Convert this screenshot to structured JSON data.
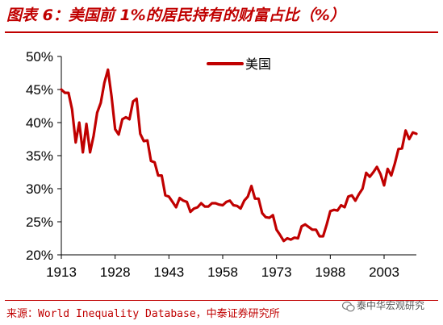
{
  "figure": {
    "title": "图表 6：美国前 1%的居民持有的财富占比（%）",
    "source": "来源：World Inequality Database，中泰证券研究所",
    "watermark": "泰中华宏观研究"
  },
  "colors": {
    "accent": "#c00000",
    "line": "#c00000",
    "text": "#000000"
  },
  "chart_data": {
    "type": "line",
    "title": "",
    "xlabel": "",
    "ylabel": "",
    "xlim": [
      1913,
      2012
    ],
    "ylim": [
      20,
      50
    ],
    "x_ticks": [
      "1913",
      "1928",
      "1943",
      "1958",
      "1973",
      "1988",
      "2003"
    ],
    "y_ticks": [
      "20%",
      "25%",
      "30%",
      "35%",
      "40%",
      "45%",
      "50%"
    ],
    "y_tick_values": [
      20,
      25,
      30,
      35,
      40,
      45,
      50
    ],
    "x_tick_values": [
      1913,
      1928,
      1943,
      1958,
      1973,
      1988,
      2003
    ],
    "grid": false,
    "legend_position": "top-center",
    "series": [
      {
        "name": "美国",
        "color": "#c00000",
        "x": [
          1913,
          1914,
          1915,
          1916,
          1917,
          1918,
          1919,
          1920,
          1921,
          1922,
          1923,
          1924,
          1925,
          1926,
          1927,
          1928,
          1929,
          1930,
          1931,
          1932,
          1933,
          1934,
          1935,
          1936,
          1937,
          1938,
          1939,
          1940,
          1941,
          1942,
          1943,
          1944,
          1945,
          1946,
          1947,
          1948,
          1949,
          1950,
          1951,
          1952,
          1953,
          1954,
          1955,
          1956,
          1957,
          1958,
          1959,
          1960,
          1961,
          1962,
          1963,
          1964,
          1965,
          1966,
          1967,
          1968,
          1969,
          1970,
          1971,
          1972,
          1973,
          1974,
          1975,
          1976,
          1977,
          1978,
          1979,
          1980,
          1981,
          1982,
          1983,
          1984,
          1985,
          1986,
          1987,
          1988,
          1989,
          1990,
          1991,
          1992,
          1993,
          1994,
          1995,
          1996,
          1997,
          1998,
          1999,
          2000,
          2001,
          2002,
          2003,
          2004,
          2005,
          2006,
          2007,
          2008,
          2009,
          2010,
          2011,
          2012
        ],
        "values": [
          45,
          44.5,
          44.5,
          42,
          37,
          40,
          35.5,
          39.8,
          35.5,
          38,
          41.5,
          43,
          46,
          48,
          44,
          39,
          38.2,
          40.5,
          40.8,
          40.5,
          43.2,
          43.6,
          38.3,
          37.2,
          37.3,
          34.2,
          34,
          32,
          32,
          29,
          28.8,
          28,
          27.2,
          28.6,
          28.2,
          28,
          26.5,
          27,
          27.2,
          27.8,
          27.3,
          27.3,
          27.8,
          27.8,
          27.6,
          27.5,
          28,
          28.2,
          27.5,
          27.4,
          27,
          28.2,
          28.8,
          30.4,
          28.5,
          28.5,
          26.3,
          25.7,
          25.6,
          26,
          23.8,
          23,
          22.1,
          22.5,
          22.3,
          22.6,
          22.5,
          24.3,
          24.6,
          24.2,
          23.8,
          23.8,
          22.8,
          22.8,
          24.6,
          26.6,
          26.8,
          26.7,
          27.5,
          27.2,
          28.8,
          29,
          28.2,
          29.2,
          30,
          32.4,
          31.8,
          32.5,
          33.3,
          32.2,
          30.5,
          33,
          32,
          33.8,
          36,
          36.1,
          38.8,
          37.5,
          38.5,
          38.3
        ]
      }
    ]
  }
}
